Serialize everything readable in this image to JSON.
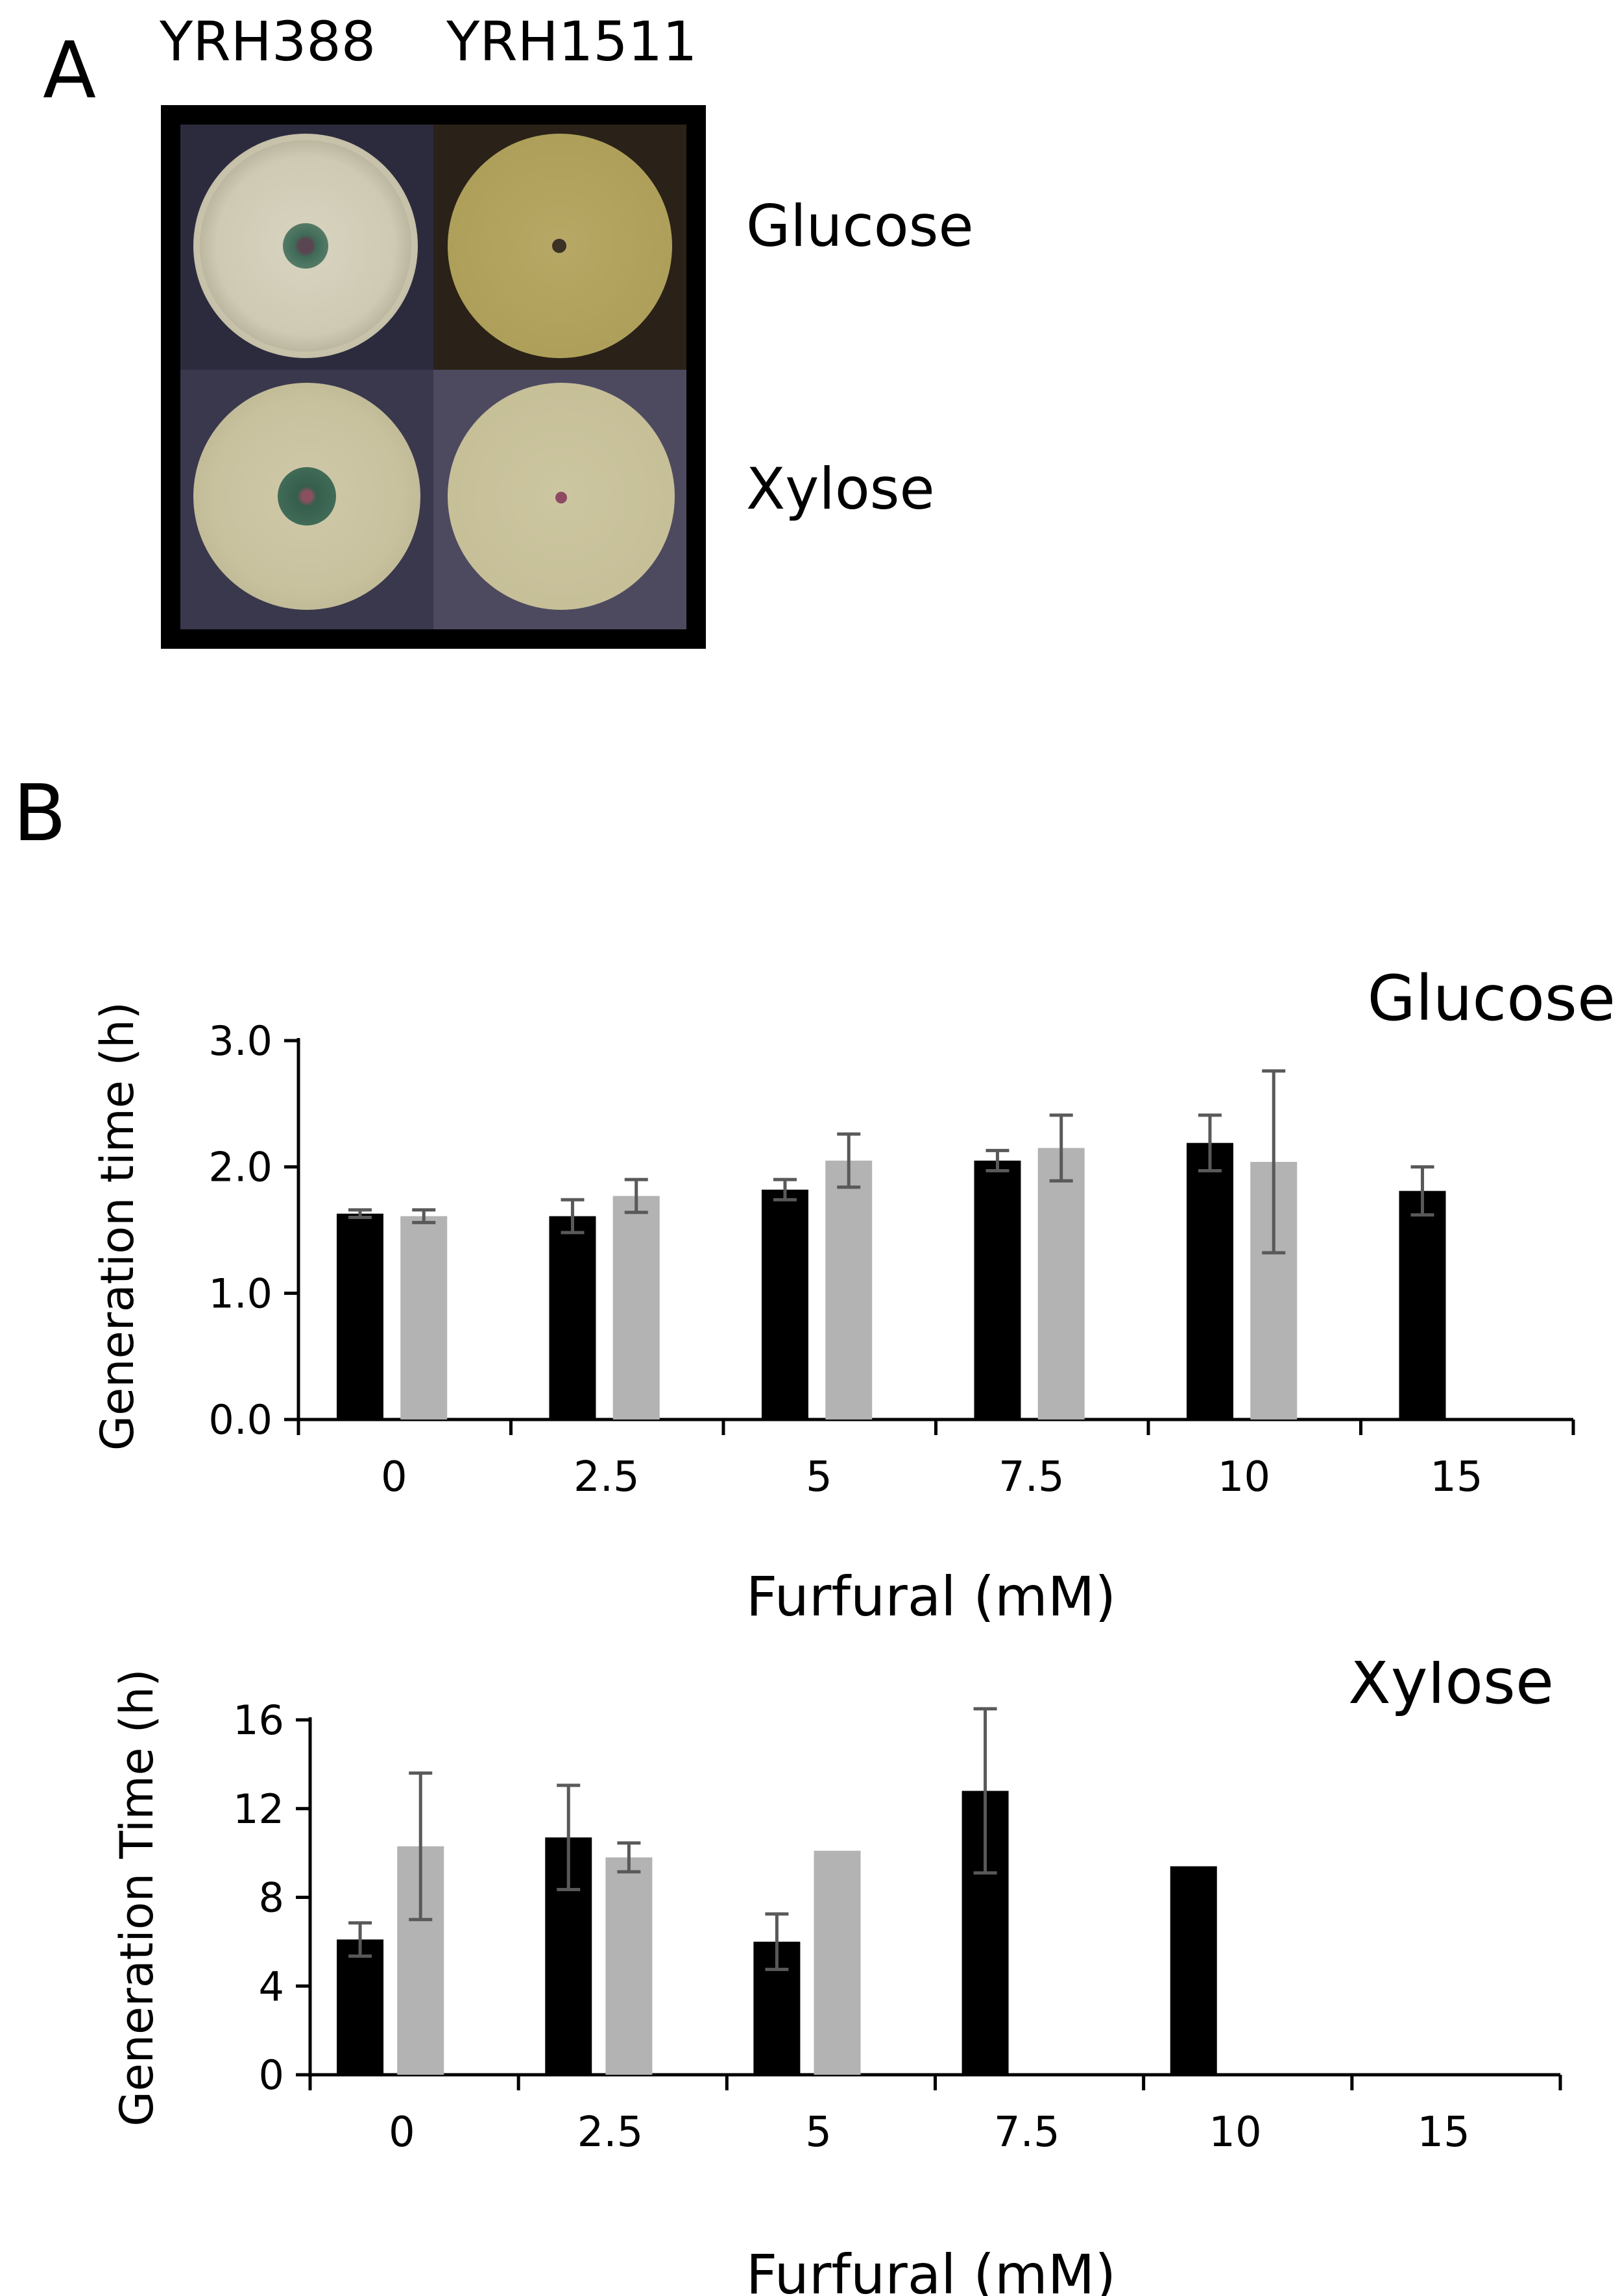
{
  "panel_a": {
    "label": "A",
    "strains": [
      "YRH388",
      "YRH1511"
    ],
    "conditions": [
      "Glucose",
      "Xylose"
    ]
  },
  "panel_b": {
    "label": "B"
  },
  "colors": {
    "series_1": "#000000",
    "series_2": "#b3b3b3",
    "error_bar": "#595959",
    "plate_frame": "#000000"
  },
  "chart_data": [
    {
      "type": "bar",
      "title": "Glucose",
      "xlabel": "Furfural (mM)",
      "ylabel": "Generation time (h)",
      "categories": [
        "0",
        "2.5",
        "5",
        "7.5",
        "10",
        "15"
      ],
      "ylim": [
        0,
        3
      ],
      "yticks": [
        "0.0",
        "1.0",
        "2.0",
        "3.0"
      ],
      "grid": false,
      "legend": "none",
      "series": [
        {
          "values": [
            1.63,
            1.61,
            1.82,
            2.05,
            2.19,
            1.81
          ],
          "errors": [
            0.03,
            0.13,
            0.08,
            0.08,
            0.22,
            0.19
          ]
        },
        {
          "values": [
            1.61,
            1.77,
            2.05,
            2.15,
            2.04,
            null
          ],
          "errors": [
            0.05,
            0.13,
            0.21,
            0.26,
            0.72,
            null
          ]
        }
      ]
    },
    {
      "type": "bar",
      "title": "Xylose",
      "xlabel": "Furfural (mM)",
      "ylabel": "Generation Time (h)",
      "categories": [
        "0",
        "2.5",
        "5",
        "7.5",
        "10",
        "15"
      ],
      "ylim": [
        0,
        16
      ],
      "yticks": [
        "0",
        "4",
        "8",
        "12",
        "16"
      ],
      "grid": false,
      "legend": "none",
      "series": [
        {
          "values": [
            6.1,
            10.7,
            6.0,
            12.8,
            9.4,
            null
          ],
          "errors": [
            0.75,
            2.35,
            1.25,
            3.7,
            null,
            null
          ]
        },
        {
          "values": [
            10.3,
            9.8,
            10.1,
            null,
            null,
            null
          ],
          "errors": [
            3.3,
            0.65,
            null,
            null,
            null,
            null
          ]
        }
      ]
    }
  ]
}
